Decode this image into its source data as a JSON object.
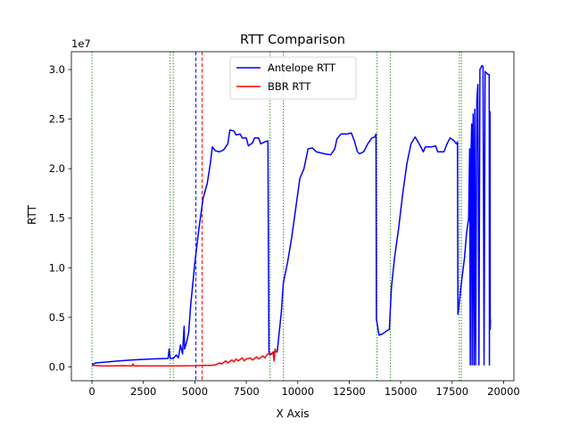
{
  "chart_data": {
    "type": "line",
    "title": "RTT Comparison",
    "xlabel": "X Axis",
    "ylabel": "RTT",
    "y_offset_text": "1e7",
    "xlim": [
      -1000,
      20500
    ],
    "ylim": [
      -1.4,
      31.8
    ],
    "x_ticks": [
      0,
      2500,
      5000,
      7500,
      10000,
      12500,
      15000,
      17500,
      20000
    ],
    "x_tick_labels": [
      "0",
      "2500",
      "5000",
      "7500",
      "10000",
      "12500",
      "15000",
      "17500",
      "20000"
    ],
    "y_ticks": [
      0,
      5,
      10,
      15,
      20,
      25,
      30
    ],
    "y_tick_labels": [
      "0.0",
      "0.5",
      "1.0",
      "1.5",
      "2.0",
      "2.5",
      "3.0"
    ],
    "legend_position": "top-center",
    "grid": false,
    "green_vlines": [
      0,
      3800,
      3950,
      8650,
      9300,
      13850,
      14500,
      17850,
      17950
    ],
    "blue_vline": 5050,
    "red_vline": 5350,
    "series": [
      {
        "name": "Antelope RTT",
        "color": "#0000ff",
        "points": [
          [
            0,
            0.25
          ],
          [
            200,
            0.4
          ],
          [
            1000,
            0.55
          ],
          [
            2000,
            0.7
          ],
          [
            3000,
            0.8
          ],
          [
            3700,
            0.85
          ],
          [
            3750,
            1.8
          ],
          [
            3800,
            0.85
          ],
          [
            3950,
            0.85
          ],
          [
            4100,
            1.2
          ],
          [
            4200,
            0.9
          ],
          [
            4300,
            2.2
          ],
          [
            4400,
            1.3
          ],
          [
            4450,
            3.2
          ],
          [
            4480,
            4.1
          ],
          [
            4500,
            1.8
          ],
          [
            4600,
            2.5
          ],
          [
            4700,
            3.5
          ],
          [
            4800,
            6.3
          ],
          [
            5000,
            10.5
          ],
          [
            5200,
            14.0
          ],
          [
            5400,
            17.0
          ],
          [
            5600,
            18.5
          ],
          [
            5750,
            20.5
          ],
          [
            5850,
            22.2
          ],
          [
            6000,
            21.8
          ],
          [
            6200,
            21.7
          ],
          [
            6400,
            21.9
          ],
          [
            6600,
            22.5
          ],
          [
            6700,
            23.9
          ],
          [
            6900,
            23.8
          ],
          [
            7000,
            23.4
          ],
          [
            7200,
            23.5
          ],
          [
            7300,
            23.1
          ],
          [
            7500,
            23.1
          ],
          [
            7600,
            22.3
          ],
          [
            7800,
            22.6
          ],
          [
            7900,
            23.1
          ],
          [
            8100,
            23.1
          ],
          [
            8200,
            22.5
          ],
          [
            8400,
            22.7
          ],
          [
            8550,
            22.8
          ],
          [
            8570,
            13.0
          ],
          [
            8600,
            1.5
          ],
          [
            8650,
            1.2
          ],
          [
            8800,
            1.4
          ],
          [
            8900,
            1.6
          ],
          [
            9000,
            1.5
          ],
          [
            9100,
            3.5
          ],
          [
            9200,
            5.5
          ],
          [
            9300,
            8.5
          ],
          [
            9500,
            10.5
          ],
          [
            9700,
            13.0
          ],
          [
            9900,
            16.0
          ],
          [
            10100,
            19.0
          ],
          [
            10300,
            20.0
          ],
          [
            10500,
            22.0
          ],
          [
            10700,
            22.1
          ],
          [
            10900,
            21.7
          ],
          [
            11100,
            21.6
          ],
          [
            11300,
            21.5
          ],
          [
            11600,
            21.4
          ],
          [
            11800,
            22.0
          ],
          [
            11900,
            23.0
          ],
          [
            12100,
            23.5
          ],
          [
            12400,
            23.5
          ],
          [
            12600,
            23.6
          ],
          [
            12750,
            22.8
          ],
          [
            12900,
            21.7
          ],
          [
            13000,
            21.5
          ],
          [
            13200,
            21.7
          ],
          [
            13400,
            22.5
          ],
          [
            13600,
            23.1
          ],
          [
            13750,
            23.2
          ],
          [
            13800,
            23.5
          ],
          [
            13820,
            4.8
          ],
          [
            13900,
            3.8
          ],
          [
            13950,
            3.2
          ],
          [
            14100,
            3.3
          ],
          [
            14300,
            3.6
          ],
          [
            14450,
            3.8
          ],
          [
            14550,
            8.0
          ],
          [
            14700,
            11.0
          ],
          [
            14900,
            14.0
          ],
          [
            15100,
            17.5
          ],
          [
            15300,
            20.5
          ],
          [
            15500,
            22.5
          ],
          [
            15700,
            23.2
          ],
          [
            15900,
            22.5
          ],
          [
            16100,
            21.7
          ],
          [
            16200,
            22.2
          ],
          [
            16500,
            22.2
          ],
          [
            16700,
            22.3
          ],
          [
            16800,
            21.7
          ],
          [
            17100,
            21.7
          ],
          [
            17250,
            22.5
          ],
          [
            17400,
            23.1
          ],
          [
            17600,
            22.8
          ],
          [
            17700,
            22.5
          ],
          [
            17760,
            22.7
          ],
          [
            17770,
            13.0
          ],
          [
            17780,
            5.3
          ],
          [
            17850,
            6.5
          ],
          [
            17950,
            8.5
          ],
          [
            18100,
            11.0
          ],
          [
            18200,
            13.5
          ],
          [
            18300,
            15.0
          ],
          [
            18350,
            22.0
          ],
          [
            18380,
            0.2
          ],
          [
            18420,
            22.0
          ],
          [
            18450,
            24.5
          ],
          [
            18470,
            0.2
          ],
          [
            18520,
            25.5
          ],
          [
            18560,
            0.2
          ],
          [
            18600,
            26.0
          ],
          [
            18640,
            0.2
          ],
          [
            18700,
            27.0
          ],
          [
            18750,
            28.5
          ],
          [
            18800,
            0.2
          ],
          [
            18850,
            30.0
          ],
          [
            18950,
            30.4
          ],
          [
            19000,
            30.3
          ],
          [
            19050,
            0.2
          ],
          [
            19100,
            29.8
          ],
          [
            19200,
            29.6
          ],
          [
            19250,
            29.5
          ],
          [
            19300,
            29.5
          ],
          [
            19310,
            0.2
          ],
          [
            19320,
            25.8
          ],
          [
            19340,
            25.7
          ],
          [
            19350,
            3.8
          ],
          [
            19360,
            4.8
          ]
        ]
      },
      {
        "name": "BBR RTT",
        "color": "#ff0000",
        "points": [
          [
            0,
            0.15
          ],
          [
            500,
            0.1
          ],
          [
            1000,
            0.1
          ],
          [
            1500,
            0.12
          ],
          [
            1950,
            0.1
          ],
          [
            2000,
            0.3
          ],
          [
            2050,
            0.1
          ],
          [
            3000,
            0.1
          ],
          [
            4000,
            0.1
          ],
          [
            5000,
            0.12
          ],
          [
            5400,
            0.15
          ],
          [
            5800,
            0.15
          ],
          [
            6000,
            0.2
          ],
          [
            6200,
            0.4
          ],
          [
            6300,
            0.3
          ],
          [
            6500,
            0.6
          ],
          [
            6600,
            0.4
          ],
          [
            6800,
            0.7
          ],
          [
            6900,
            0.5
          ],
          [
            7000,
            0.8
          ],
          [
            7100,
            0.6
          ],
          [
            7300,
            0.9
          ],
          [
            7400,
            0.6
          ],
          [
            7500,
            0.8
          ],
          [
            7700,
            0.9
          ],
          [
            7800,
            0.7
          ],
          [
            8000,
            1.0
          ],
          [
            8100,
            0.8
          ],
          [
            8300,
            1.1
          ],
          [
            8400,
            0.9
          ],
          [
            8500,
            1.2
          ],
          [
            8600,
            1.4
          ],
          [
            8700,
            1.3
          ],
          [
            8800,
            1.5
          ],
          [
            8850,
            0.6
          ],
          [
            8900,
            1.8
          ],
          [
            8950,
            1.5
          ],
          [
            9000,
            1.6
          ]
        ]
      }
    ]
  }
}
